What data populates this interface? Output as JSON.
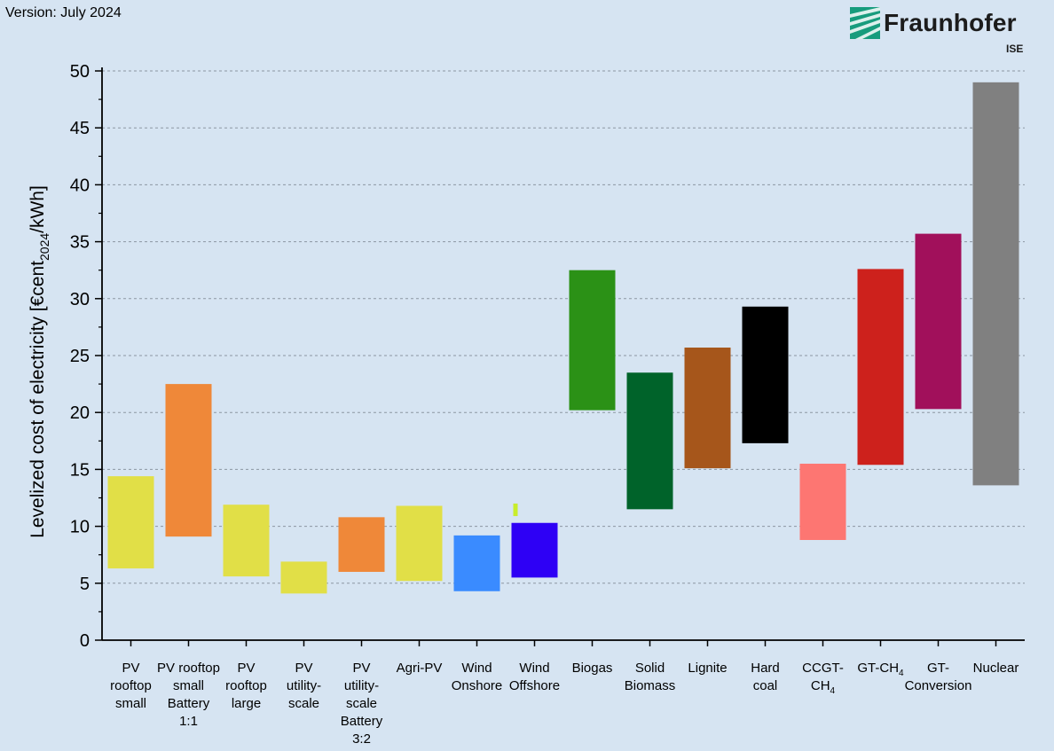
{
  "header": {
    "version": "Version: July 2024",
    "logo_name": "Fraunhofer",
    "logo_sub": "ISE"
  },
  "chart_data": {
    "type": "bar",
    "subtype": "floating-range",
    "ylabel_parts": [
      "Levelized cost of electricity [€cent",
      "2024",
      "/kWh]"
    ],
    "ylim": [
      0,
      50
    ],
    "yticks": [
      0,
      5,
      10,
      15,
      20,
      25,
      30,
      35,
      40,
      45,
      50
    ],
    "grid": true,
    "legend": "none",
    "categories": [
      {
        "label": [
          "PV",
          "rooftop",
          "small"
        ],
        "low": 6.3,
        "high": 14.4,
        "color": "#e1df47"
      },
      {
        "label": [
          "PV rooftop",
          "small",
          "Battery",
          "1:1"
        ],
        "low": 9.1,
        "high": 22.5,
        "color": "#ef8839"
      },
      {
        "label": [
          "PV",
          "rooftop",
          "large"
        ],
        "low": 5.6,
        "high": 11.9,
        "color": "#e1df47"
      },
      {
        "label": [
          "PV",
          "utility-",
          "scale"
        ],
        "low": 4.1,
        "high": 6.9,
        "color": "#e1df47"
      },
      {
        "label": [
          "PV",
          "utility-",
          "scale",
          "Battery",
          "3:2"
        ],
        "low": 6.0,
        "high": 10.8,
        "color": "#ef8839"
      },
      {
        "label": [
          "Agri-PV"
        ],
        "low": 5.2,
        "high": 11.8,
        "color": "#e1df47"
      },
      {
        "label": [
          "Wind",
          "Onshore"
        ],
        "low": 4.3,
        "high": 9.2,
        "color": "#3a8bff"
      },
      {
        "label": [
          "Wind",
          "Offshore"
        ],
        "low": 5.5,
        "high": 10.3,
        "color": "#2e00f5"
      },
      {
        "label": [
          "Biogas"
        ],
        "low": 20.2,
        "high": 32.5,
        "color": "#2b9116"
      },
      {
        "label": [
          "Solid",
          "Biomass"
        ],
        "low": 11.5,
        "high": 23.5,
        "color": "#00632a"
      },
      {
        "label": [
          "Lignite"
        ],
        "low": 15.1,
        "high": 25.7,
        "color": "#a6561b"
      },
      {
        "label": [
          "Hard",
          "coal"
        ],
        "low": 17.3,
        "high": 29.3,
        "color": "#000000"
      },
      {
        "label": [
          "CCGT-",
          "CH|4"
        ],
        "low": 8.8,
        "high": 15.5,
        "color": "#fd7672"
      },
      {
        "label": [
          "GT-CH|4"
        ],
        "low": 15.4,
        "high": 32.6,
        "color": "#cd211c"
      },
      {
        "label": [
          "GT-",
          "Conversion"
        ],
        "low": 20.3,
        "high": 35.7,
        "color": "#a1105b"
      },
      {
        "label": [
          "Nuclear"
        ],
        "low": 13.6,
        "high": 49.0,
        "color": "#808080"
      }
    ],
    "extra_marks": [
      {
        "after_category": 7,
        "low": 10.9,
        "high": 12.0,
        "color": "#c8ed2a"
      }
    ]
  }
}
